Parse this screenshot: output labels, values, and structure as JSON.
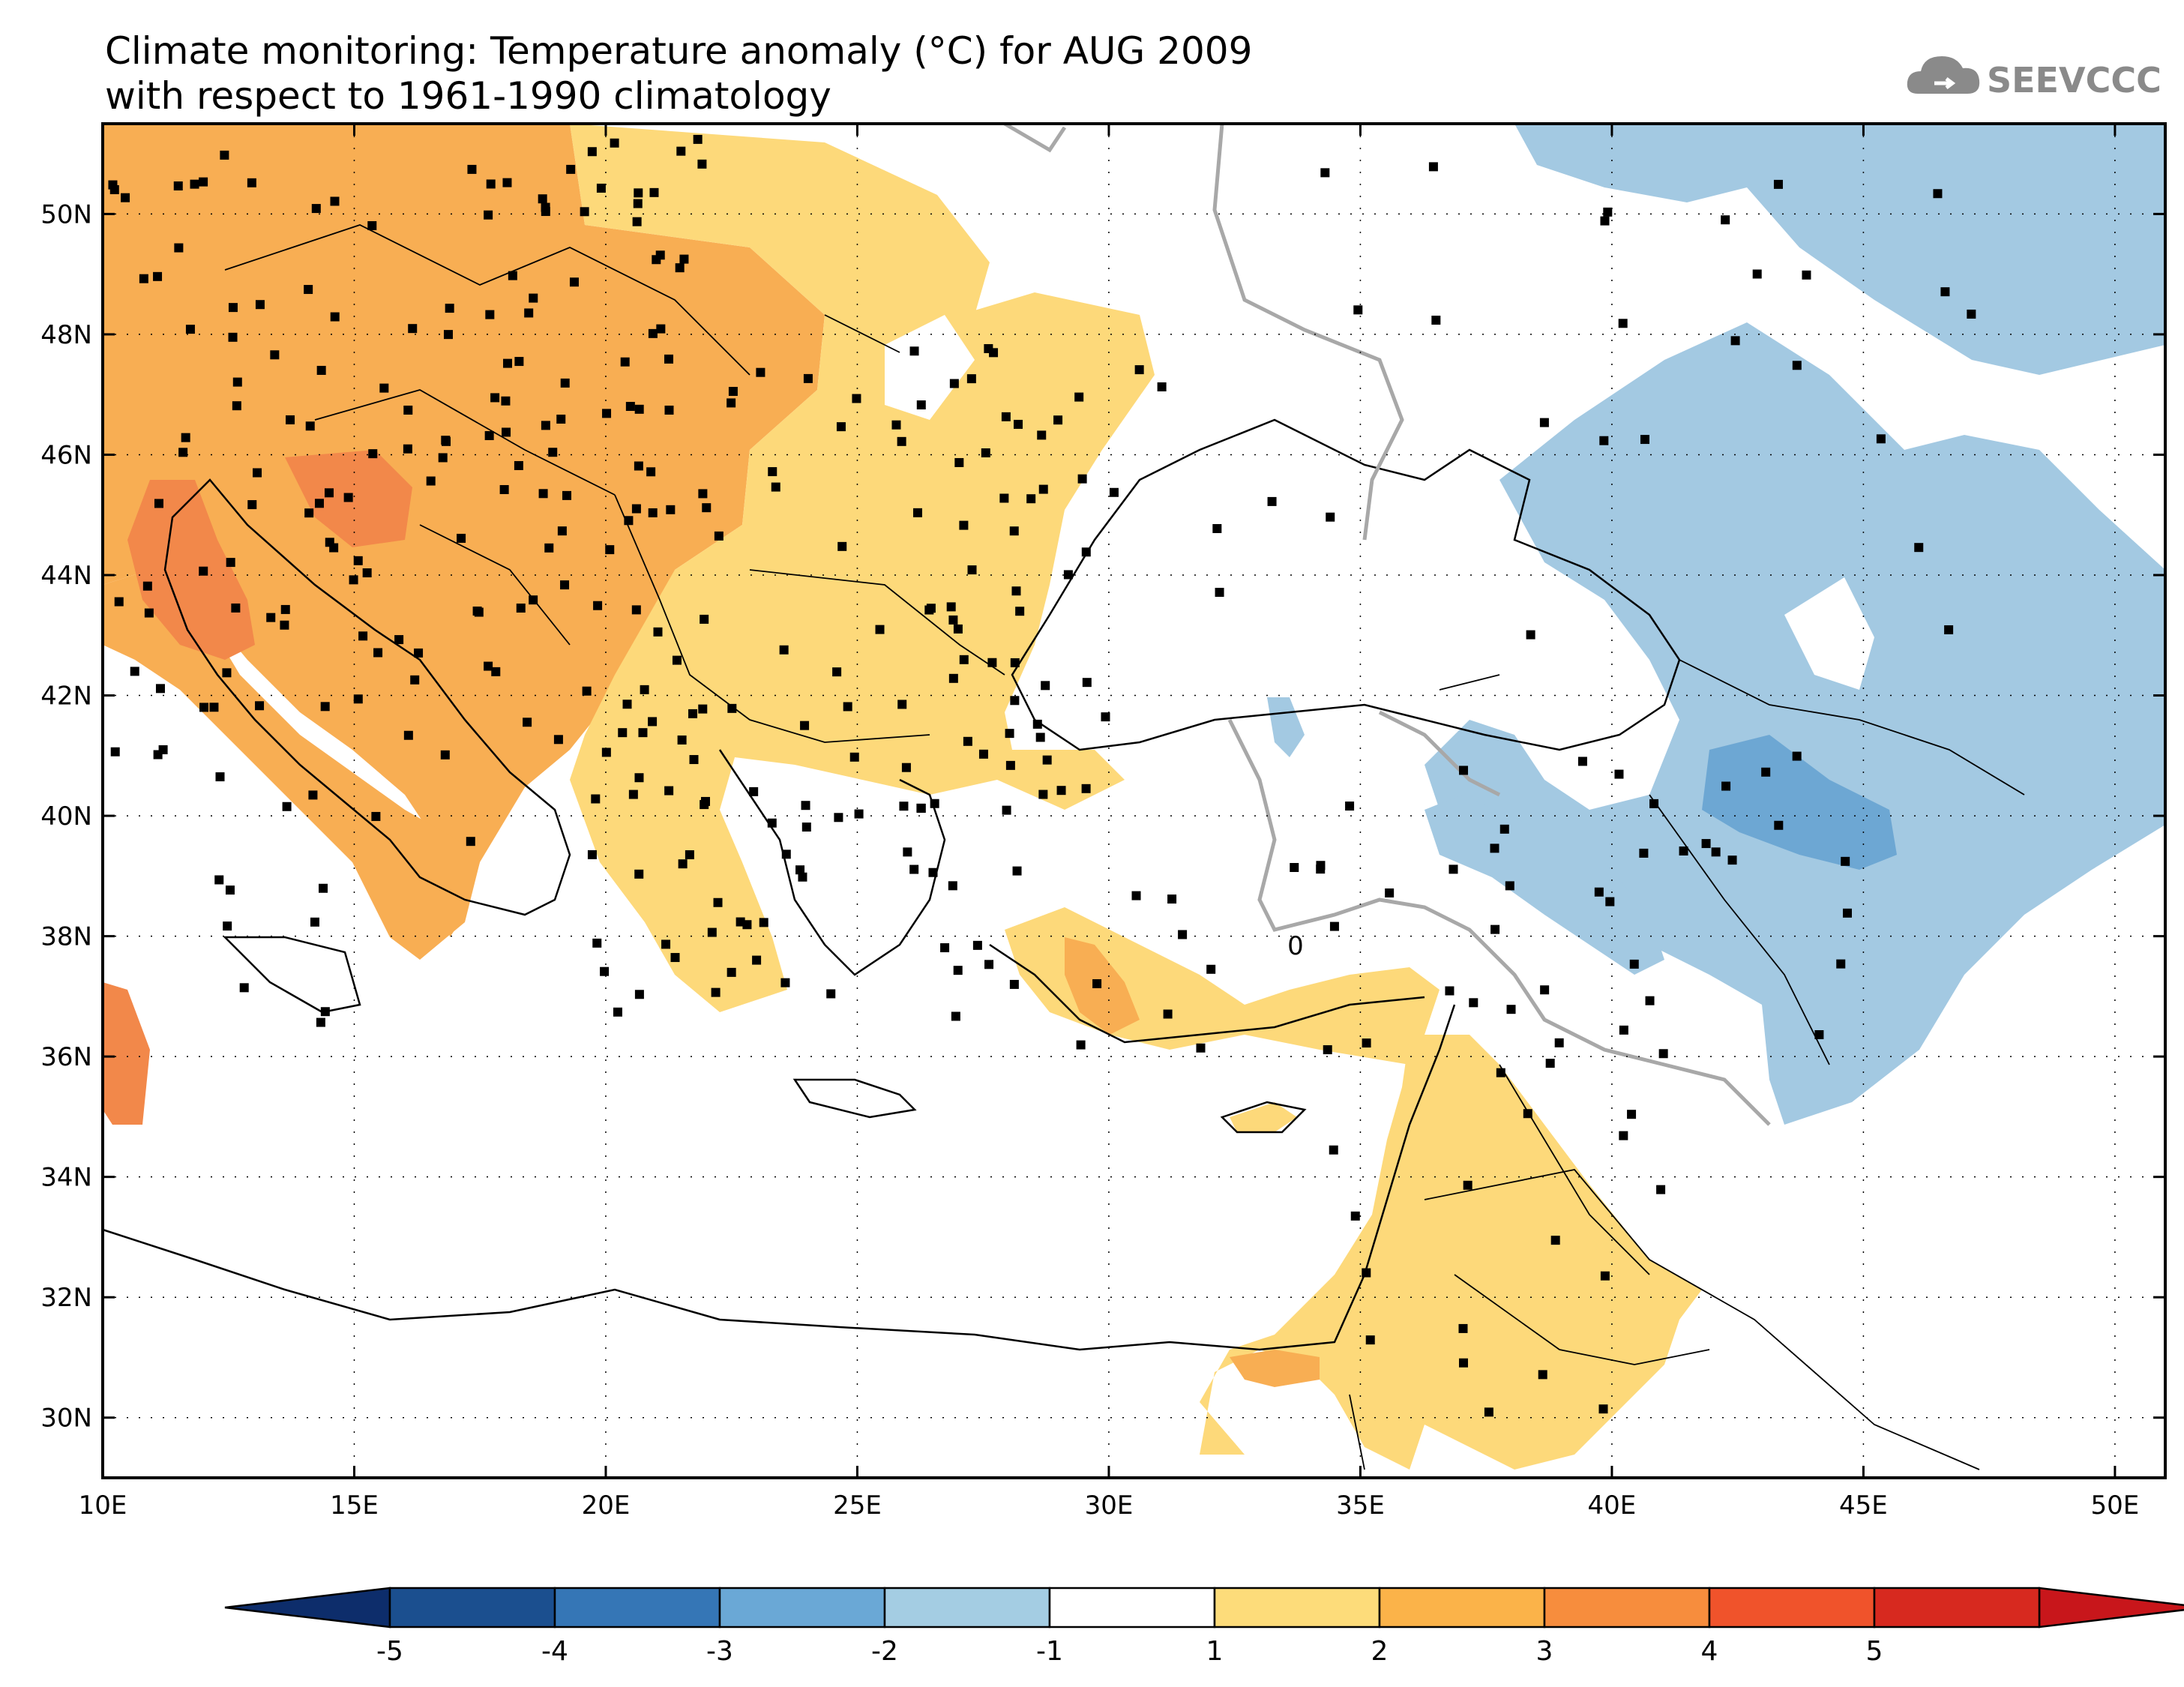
{
  "title": {
    "line1": "Climate monitoring: Temperature anomaly (°C) for AUG 2009",
    "line2": "with respect to 1961-1990 climatology"
  },
  "logo": {
    "text": "SEEVCCC",
    "icon": "cloud-icon"
  },
  "map": {
    "region": "Southeast Europe and Eastern Mediterranean",
    "lon_range": [
      10,
      51
    ],
    "lat_range": [
      29,
      51.5
    ],
    "lon_ticks": [
      "10E",
      "15E",
      "20E",
      "25E",
      "30E",
      "35E",
      "40E",
      "45E",
      "50E"
    ],
    "lat_ticks": [
      "30N",
      "32N",
      "34N",
      "36N",
      "38N",
      "40N",
      "42N",
      "44N",
      "46N",
      "48N",
      "50N"
    ],
    "contour_label": "0",
    "grid": "dotted"
  },
  "colorbar": {
    "labels": [
      "-5",
      "-4",
      "-3",
      "-2",
      "-1",
      "1",
      "2",
      "3",
      "4",
      "5"
    ],
    "colors": [
      "#1b4f8f",
      "#3576b6",
      "#6aa8d6",
      "#a4cde3",
      "#ffffff",
      "#fddc7a",
      "#fbb349",
      "#f78d3d",
      "#f0532b",
      "#d7291f"
    ],
    "under_color": "#0d2d6b",
    "over_color": "#c8161b"
  },
  "colors": {
    "orange_2_3": "#f8ae53",
    "orange_3_4": "#f2884a",
    "yellow_1_2": "#fdd97a",
    "blue_m2_m1": "#a3c9e2",
    "blue_m3_m2": "#6da7d3",
    "zero_contour": "#a8a8a8"
  }
}
